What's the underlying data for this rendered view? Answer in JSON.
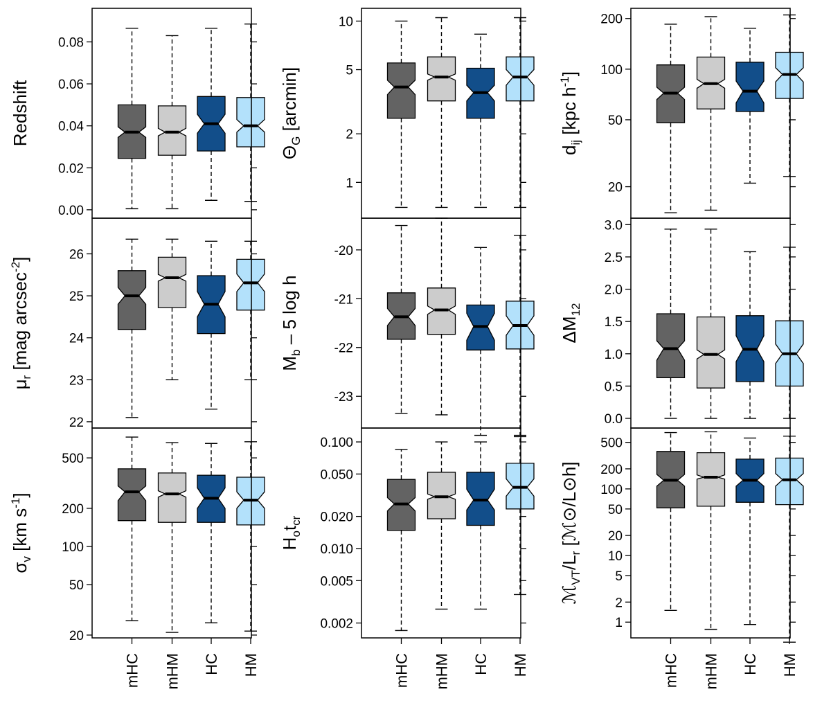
{
  "categories": [
    "mHC",
    "mHM",
    "HC",
    "HM"
  ],
  "colors": {
    "mHC": "#636363",
    "mHM": "#cccccc",
    "HC": "#124e8a",
    "HM": "#b3e1fb"
  },
  "chart_data": [
    {
      "type": "box",
      "id": "redshift",
      "ylabel": "Redshift",
      "scale": "linear",
      "ylim": [
        -0.004,
        0.096
      ],
      "ticks": [
        0.0,
        0.02,
        0.04,
        0.06,
        0.08
      ],
      "tick_labels": [
        "0.00",
        "0.02",
        "0.04",
        "0.06",
        "0.08"
      ],
      "boxes": [
        {
          "name": "mHC",
          "min": 0.0005,
          "q1": 0.0245,
          "median": 0.037,
          "q3": 0.05,
          "max": 0.0865,
          "notch": [
            0.0345,
            0.0395
          ]
        },
        {
          "name": "mHM",
          "min": 0.0005,
          "q1": 0.026,
          "median": 0.037,
          "q3": 0.0495,
          "max": 0.083,
          "notch": [
            0.0352,
            0.0388
          ]
        },
        {
          "name": "HC",
          "min": 0.0045,
          "q1": 0.028,
          "median": 0.041,
          "q3": 0.054,
          "max": 0.0865,
          "notch": [
            0.0365,
            0.0455
          ]
        },
        {
          "name": "HM",
          "min": 0.004,
          "q1": 0.03,
          "median": 0.04,
          "q3": 0.0535,
          "max": 0.0885,
          "notch": [
            0.037,
            0.043
          ]
        }
      ]
    },
    {
      "type": "box",
      "id": "theta",
      "ylabel": "ΘG [arcmin]",
      "ylabel_parts": {
        "main": "Θ",
        "sub": "G",
        "rest": " [arcmin]"
      },
      "scale": "log",
      "ylim": [
        0.6,
        12
      ],
      "ticks": [
        1,
        2,
        5,
        10
      ],
      "tick_labels": [
        "1",
        "2",
        "5",
        "10"
      ],
      "boxes": [
        {
          "name": "mHC",
          "min": 0.7,
          "q1": 2.5,
          "median": 3.9,
          "q3": 5.5,
          "max": 10.0,
          "notch": [
            3.5,
            4.3
          ]
        },
        {
          "name": "mHM",
          "min": 0.7,
          "q1": 3.2,
          "median": 4.5,
          "q3": 6.0,
          "max": 10.5,
          "notch": [
            4.3,
            4.7
          ]
        },
        {
          "name": "HC",
          "min": 0.7,
          "q1": 2.5,
          "median": 3.6,
          "q3": 5.1,
          "max": 8.3,
          "notch": [
            3.2,
            4.0
          ]
        },
        {
          "name": "HM",
          "min": 0.7,
          "q1": 3.2,
          "median": 4.5,
          "q3": 6.0,
          "max": 10.5,
          "notch": [
            4.0,
            5.0
          ]
        }
      ]
    },
    {
      "type": "box",
      "id": "dij",
      "ylabel": "dij [kpc h-1]",
      "ylabel_parts": {
        "main": "d",
        "sub": "ij",
        "rest": " [kpc h",
        "sup": "-1",
        "end": "]"
      },
      "scale": "log",
      "ylim": [
        13,
        230
      ],
      "ticks": [
        20,
        50,
        100,
        200
      ],
      "tick_labels": [
        "20",
        "50",
        "100",
        "200"
      ],
      "boxes": [
        {
          "name": "mHC",
          "min": 14.0,
          "q1": 48,
          "median": 72,
          "q3": 106,
          "max": 185,
          "notch": [
            66,
            78
          ]
        },
        {
          "name": "mHM",
          "min": 14.5,
          "q1": 58,
          "median": 82,
          "q3": 118,
          "max": 205,
          "notch": [
            77,
            87
          ]
        },
        {
          "name": "HC",
          "min": 21,
          "q1": 56,
          "median": 74,
          "q3": 110,
          "max": 175,
          "notch": [
            63,
            85
          ]
        },
        {
          "name": "HM",
          "min": 23,
          "q1": 67,
          "median": 93,
          "q3": 126,
          "max": 210,
          "notch": [
            84,
            102
          ]
        }
      ]
    },
    {
      "type": "box",
      "id": "mu",
      "ylabel": "μr [mag arcsec-2]",
      "ylabel_parts": {
        "main": "μ",
        "sub": "r",
        "rest": " [mag arcsec",
        "sup": "-2",
        "end": "]"
      },
      "scale": "linear",
      "ylim": [
        21.85,
        26.85
      ],
      "ticks": [
        22,
        23,
        24,
        25,
        26
      ],
      "tick_labels": [
        "22",
        "23",
        "24",
        "25",
        "26"
      ],
      "boxes": [
        {
          "name": "mHC",
          "min": 22.1,
          "q1": 24.2,
          "median": 25.0,
          "q3": 25.6,
          "max": 26.35,
          "notch": [
            24.8,
            25.2
          ]
        },
        {
          "name": "mHM",
          "min": 23.0,
          "q1": 24.72,
          "median": 25.43,
          "q3": 25.92,
          "max": 26.35,
          "notch": [
            25.35,
            25.51
          ]
        },
        {
          "name": "HC",
          "min": 22.3,
          "q1": 24.1,
          "median": 24.8,
          "q3": 25.48,
          "max": 26.3,
          "notch": [
            24.5,
            25.1
          ]
        },
        {
          "name": "HM",
          "min": 23.0,
          "q1": 24.66,
          "median": 25.31,
          "q3": 25.87,
          "max": 26.3,
          "notch": [
            25.1,
            25.52
          ]
        }
      ]
    },
    {
      "type": "box",
      "id": "mb",
      "ylabel": "Mb – 5 log h",
      "ylabel_parts": {
        "main": "M",
        "sub": "b",
        "rest": " – 5 log h"
      },
      "scale": "linear",
      "reversed": true,
      "ylim": [
        -23.65,
        -19.35
      ],
      "ticks": [
        -20,
        -21,
        -22,
        -23
      ],
      "tick_labels": [
        "-20",
        "-21",
        "-22",
        "-23"
      ],
      "boxes": [
        {
          "name": "mHC",
          "min": -23.35,
          "q1": -21.83,
          "median": -21.37,
          "q3": -20.88,
          "max": -19.5,
          "notch": [
            -21.55,
            -21.2
          ]
        },
        {
          "name": "mHM",
          "min": -23.38,
          "q1": -21.73,
          "median": -21.23,
          "q3": -20.78,
          "max": -19.35,
          "notch": [
            -21.32,
            -21.15
          ]
        },
        {
          "name": "HC",
          "min": -23.8,
          "q1": -22.05,
          "median": -21.57,
          "q3": -21.13,
          "max": -19.95,
          "notch": [
            -21.85,
            -21.3
          ]
        },
        {
          "name": "HM",
          "min": -23.8,
          "q1": -22.03,
          "median": -21.55,
          "q3": -21.05,
          "max": -19.7,
          "notch": [
            -21.75,
            -21.35
          ]
        }
      ]
    },
    {
      "type": "box",
      "id": "dm12",
      "ylabel": "ΔM12",
      "ylabel_parts": {
        "main": "ΔM",
        "sub": "12"
      },
      "scale": "linear",
      "ylim": [
        -0.15,
        3.1
      ],
      "ticks": [
        0.0,
        0.5,
        1.0,
        1.5,
        2.0,
        2.5,
        3.0
      ],
      "tick_labels": [
        "0.0",
        "0.5",
        "1.0",
        "1.5",
        "2.0",
        "2.5",
        "3.0"
      ],
      "boxes": [
        {
          "name": "mHC",
          "min": 0.0,
          "q1": 0.63,
          "median": 1.08,
          "q3": 1.62,
          "max": 2.93,
          "notch": [
            0.9,
            1.2
          ]
        },
        {
          "name": "mHM",
          "min": 0.0,
          "q1": 0.47,
          "median": 0.99,
          "q3": 1.57,
          "max": 2.93,
          "notch": [
            0.92,
            1.06
          ]
        },
        {
          "name": "HC",
          "min": 0.0,
          "q1": 0.57,
          "median": 1.07,
          "q3": 1.59,
          "max": 2.58,
          "notch": [
            0.88,
            1.28
          ]
        },
        {
          "name": "HM",
          "min": 0.0,
          "q1": 0.5,
          "median": 1.0,
          "q3": 1.51,
          "max": 2.65,
          "notch": [
            0.85,
            1.15
          ]
        }
      ]
    },
    {
      "type": "box",
      "id": "sigma",
      "ylabel": "σv [km s-1]",
      "ylabel_parts": {
        "main": "σ",
        "sub": "v",
        "rest": " [km s",
        "sup": "-1",
        "end": "]"
      },
      "scale": "log",
      "ylim": [
        19,
        860
      ],
      "ticks": [
        20,
        50,
        100,
        200,
        500
      ],
      "tick_labels": [
        "20",
        "50",
        "100",
        "200",
        "500"
      ],
      "boxes": [
        {
          "name": "mHC",
          "min": 26,
          "q1": 160,
          "median": 270,
          "q3": 410,
          "max": 730,
          "notch": [
            230,
            300
          ]
        },
        {
          "name": "mHM",
          "min": 21,
          "q1": 155,
          "median": 260,
          "q3": 380,
          "max": 660,
          "notch": [
            245,
            275
          ]
        },
        {
          "name": "HC",
          "min": 25,
          "q1": 155,
          "median": 240,
          "q3": 365,
          "max": 650,
          "notch": [
            200,
            290
          ]
        },
        {
          "name": "HM",
          "min": 21.5,
          "q1": 148,
          "median": 232,
          "q3": 352,
          "max": 670,
          "notch": [
            200,
            270
          ]
        }
      ]
    },
    {
      "type": "box",
      "id": "h0tcr",
      "ylabel": "Hotcr",
      "ylabel_parts": {
        "main": "H",
        "sub": "o",
        "rest": "t",
        "sub2": "cr"
      },
      "scale": "log",
      "ylim": [
        0.00145,
        0.135
      ],
      "ticks": [
        0.002,
        0.005,
        0.01,
        0.02,
        0.05,
        0.1
      ],
      "tick_labels": [
        "0.002",
        "0.005",
        "0.010",
        "0.020",
        "0.050",
        "0.100"
      ],
      "boxes": [
        {
          "name": "mHC",
          "min": 0.0017,
          "q1": 0.0148,
          "median": 0.0262,
          "q3": 0.0445,
          "max": 0.085,
          "notch": [
            0.0225,
            0.03
          ]
        },
        {
          "name": "mHM",
          "min": 0.0027,
          "q1": 0.019,
          "median": 0.0306,
          "q3": 0.052,
          "max": 0.1,
          "notch": [
            0.029,
            0.0325
          ]
        },
        {
          "name": "HC",
          "min": 0.0027,
          "q1": 0.0165,
          "median": 0.0285,
          "q3": 0.052,
          "max": 0.1,
          "notch": [
            0.023,
            0.036
          ]
        },
        {
          "name": "HM",
          "min": 0.0037,
          "q1": 0.0235,
          "median": 0.0375,
          "q3": 0.063,
          "max": 0.112,
          "notch": [
            0.031,
            0.045
          ]
        }
      ]
    },
    {
      "type": "box",
      "id": "mvt",
      "ylabel": "ℳVT/Lr [ℳ⊙/L⊙h]",
      "ylabel_parts": {
        "main": "ℳ",
        "sub": "VT",
        "rest": "/L",
        "sub2": "r",
        "end": " [ℳ⊙/L⊙h]"
      },
      "scale": "log",
      "ylim": [
        0.58,
        820
      ],
      "ticks": [
        1,
        2,
        5,
        10,
        20,
        50,
        100,
        200,
        500
      ],
      "tick_labels": [
        "1",
        "2",
        "5",
        "10",
        "20",
        "50",
        "100",
        "200",
        "500"
      ],
      "boxes": [
        {
          "name": "mHC",
          "min": 1.5,
          "q1": 52,
          "median": 135,
          "q3": 365,
          "max": 700,
          "notch": [
            110,
            165
          ]
        },
        {
          "name": "mHM",
          "min": 0.78,
          "q1": 55,
          "median": 150,
          "q3": 350,
          "max": 720,
          "notch": [
            140,
            162
          ]
        },
        {
          "name": "HC",
          "min": 0.92,
          "q1": 63,
          "median": 135,
          "q3": 280,
          "max": 580,
          "notch": [
            110,
            170
          ]
        },
        {
          "name": "HM",
          "min": 0.5,
          "q1": 58,
          "median": 137,
          "q3": 290,
          "max": 620,
          "notch": [
            110,
            170
          ]
        }
      ]
    }
  ]
}
